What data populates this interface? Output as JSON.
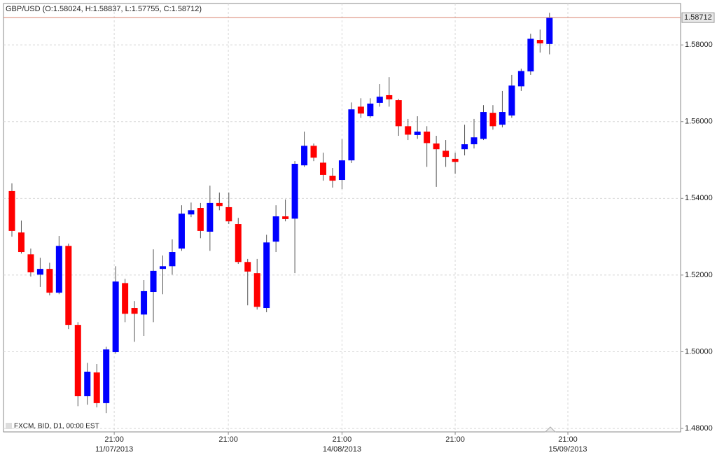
{
  "chart_data": {
    "type": "candlestick",
    "title": "GBP/USD (O:1.58024, H:1.58837, L:1.57755, C:1.58712)",
    "footer": "FXCM, BID, D1, 00:00 EST",
    "up_color": "#0000ff",
    "down_color": "#ff0000",
    "last_line_color": "#d9826f",
    "grid": true,
    "xlim": [
      -0.89,
      70.9
    ],
    "ylim": [
      1.4791,
      1.5908
    ],
    "yticks": [
      {
        "value": 1.48,
        "label": "1.48000"
      },
      {
        "value": 1.5,
        "label": "1.50000"
      },
      {
        "value": 1.52,
        "label": "1.52000"
      },
      {
        "value": 1.54,
        "label": "1.54000"
      },
      {
        "value": 1.56,
        "label": "1.56000"
      },
      {
        "value": 1.58,
        "label": "1.58000"
      }
    ],
    "xticks": [
      {
        "value": 10.85,
        "label": "21:00"
      },
      {
        "value": 22.95,
        "label": "21:00"
      },
      {
        "value": 35,
        "label": "21:00"
      },
      {
        "value": 47,
        "label": "21:00"
      },
      {
        "value": 58.95,
        "label": "21:00"
      }
    ],
    "xtick_dates": [
      {
        "value": 10.85,
        "label": "11/07/2013"
      },
      {
        "value": 35,
        "label": "14/08/2013"
      },
      {
        "value": 58.95,
        "label": "15/09/2013"
      }
    ],
    "series": [
      {
        "name": "GBP/USD",
        "open": [
          1.5419,
          1.5311,
          1.5254,
          1.5201,
          1.5216,
          1.5154,
          1.5276,
          1.507,
          1.4884,
          1.4946,
          1.4866,
          1.4999,
          1.5179,
          1.5114,
          1.5097,
          1.5156,
          1.5216,
          1.5223,
          1.5269,
          1.5358,
          1.5375,
          1.5313,
          1.5388,
          1.5377,
          1.5333,
          1.5234,
          1.5205,
          1.5114,
          1.5287,
          1.5353,
          1.5347,
          1.5486,
          1.5537,
          1.5493,
          1.5459,
          1.5448,
          1.5499,
          1.5639,
          1.5614,
          1.5649,
          1.5669,
          1.5656,
          1.5588,
          1.5565,
          1.5574,
          1.5543,
          1.5524,
          1.5503,
          1.5528,
          1.5541,
          1.5555,
          1.5623,
          1.5592,
          1.5616,
          1.5692,
          1.5731,
          1.5813,
          1.58024
        ],
        "high": [
          1.5439,
          1.5342,
          1.5269,
          1.5245,
          1.5232,
          1.5302,
          1.5282,
          1.5077,
          1.4971,
          1.4968,
          1.5013,
          1.5223,
          1.519,
          1.5132,
          1.5187,
          1.5267,
          1.5251,
          1.5293,
          1.5382,
          1.5389,
          1.5388,
          1.5433,
          1.5415,
          1.5415,
          1.5349,
          1.5242,
          1.5242,
          1.5305,
          1.5382,
          1.5397,
          1.5497,
          1.5574,
          1.5543,
          1.5519,
          1.5479,
          1.5554,
          1.565,
          1.5661,
          1.5661,
          1.5698,
          1.5716,
          1.5659,
          1.5607,
          1.5614,
          1.5588,
          1.5563,
          1.5552,
          1.5519,
          1.5592,
          1.5607,
          1.5643,
          1.5643,
          1.568,
          1.5722,
          1.5738,
          1.5829,
          1.584,
          1.58837
        ],
        "low": [
          1.53,
          1.5256,
          1.5196,
          1.5169,
          1.5147,
          1.515,
          1.5059,
          1.4858,
          1.4862,
          1.4855,
          1.484,
          1.4995,
          1.5077,
          1.5026,
          1.5041,
          1.5077,
          1.515,
          1.5201,
          1.5263,
          1.5351,
          1.5296,
          1.5263,
          1.5369,
          1.5333,
          1.5229,
          1.5121,
          1.511,
          1.5103,
          1.526,
          1.534,
          1.5205,
          1.5482,
          1.5497,
          1.5446,
          1.5428,
          1.5424,
          1.5492,
          1.561,
          1.561,
          1.5639,
          1.5639,
          1.5563,
          1.5552,
          1.5555,
          1.5482,
          1.543,
          1.5482,
          1.5464,
          1.5512,
          1.553,
          1.5552,
          1.5579,
          1.5585,
          1.561,
          1.568,
          1.5722,
          1.578,
          1.57755
        ],
        "close": [
          1.5315,
          1.526,
          1.5207,
          1.5216,
          1.5154,
          1.5276,
          1.507,
          1.4884,
          1.4948,
          1.4866,
          1.5006,
          1.5183,
          1.5099,
          1.5099,
          1.5158,
          1.5211,
          1.5223,
          1.526,
          1.536,
          1.5369,
          1.5315,
          1.5388,
          1.538,
          1.534,
          1.5234,
          1.5209,
          1.5117,
          1.5285,
          1.5353,
          1.5346,
          1.549,
          1.5537,
          1.5506,
          1.5461,
          1.5446,
          1.5499,
          1.5632,
          1.5621,
          1.5647,
          1.5665,
          1.5658,
          1.5588,
          1.5566,
          1.5574,
          1.5544,
          1.5528,
          1.5508,
          1.5495,
          1.5541,
          1.5559,
          1.5625,
          1.5588,
          1.5625,
          1.5694,
          1.5732,
          1.5816,
          1.5804,
          1.58712
        ]
      }
    ]
  }
}
